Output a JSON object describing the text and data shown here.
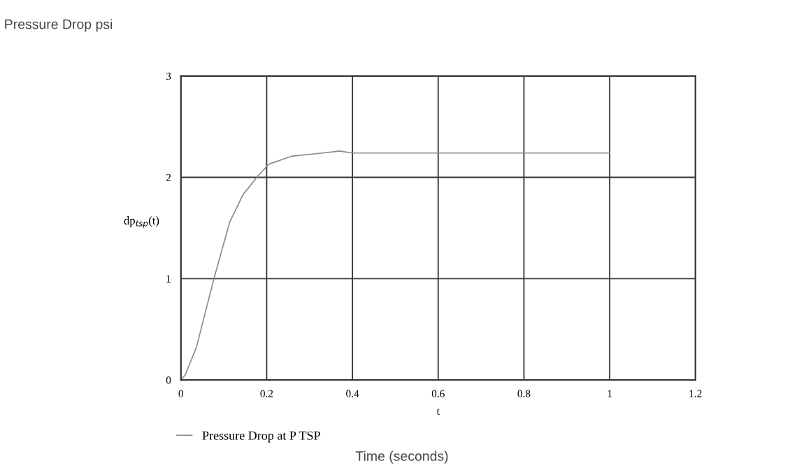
{
  "chart_data": {
    "type": "line",
    "title": "Pressure Drop psi",
    "ylabel": "dp$_{tsp}$(t)",
    "xlabel": "t",
    "annotations": [
      "Time (seconds)"
    ],
    "x": [
      0,
      0.01,
      0.036,
      0.077,
      0.114,
      0.145,
      0.177,
      0.205,
      0.26,
      0.33,
      0.37,
      0.4,
      0.6,
      0.8,
      1.0
    ],
    "series": [
      {
        "name": "Pressure Drop at P TSP",
        "color": "#8a8a8a",
        "values": [
          0,
          0.05,
          0.32,
          1.0,
          1.56,
          1.83,
          2.0,
          2.13,
          2.21,
          2.24,
          2.26,
          2.24,
          2.24,
          2.24,
          2.24
        ]
      }
    ],
    "xlim": [
      0,
      1.2
    ],
    "xticks": [
      0,
      0.2,
      0.4,
      0.6,
      0.8,
      1,
      1.2
    ],
    "ylim": [
      0,
      3
    ],
    "yticks": [
      0,
      1,
      2,
      3
    ],
    "grid": true,
    "legend": "bottom left",
    "marker": "none",
    "line_style": "solid"
  }
}
